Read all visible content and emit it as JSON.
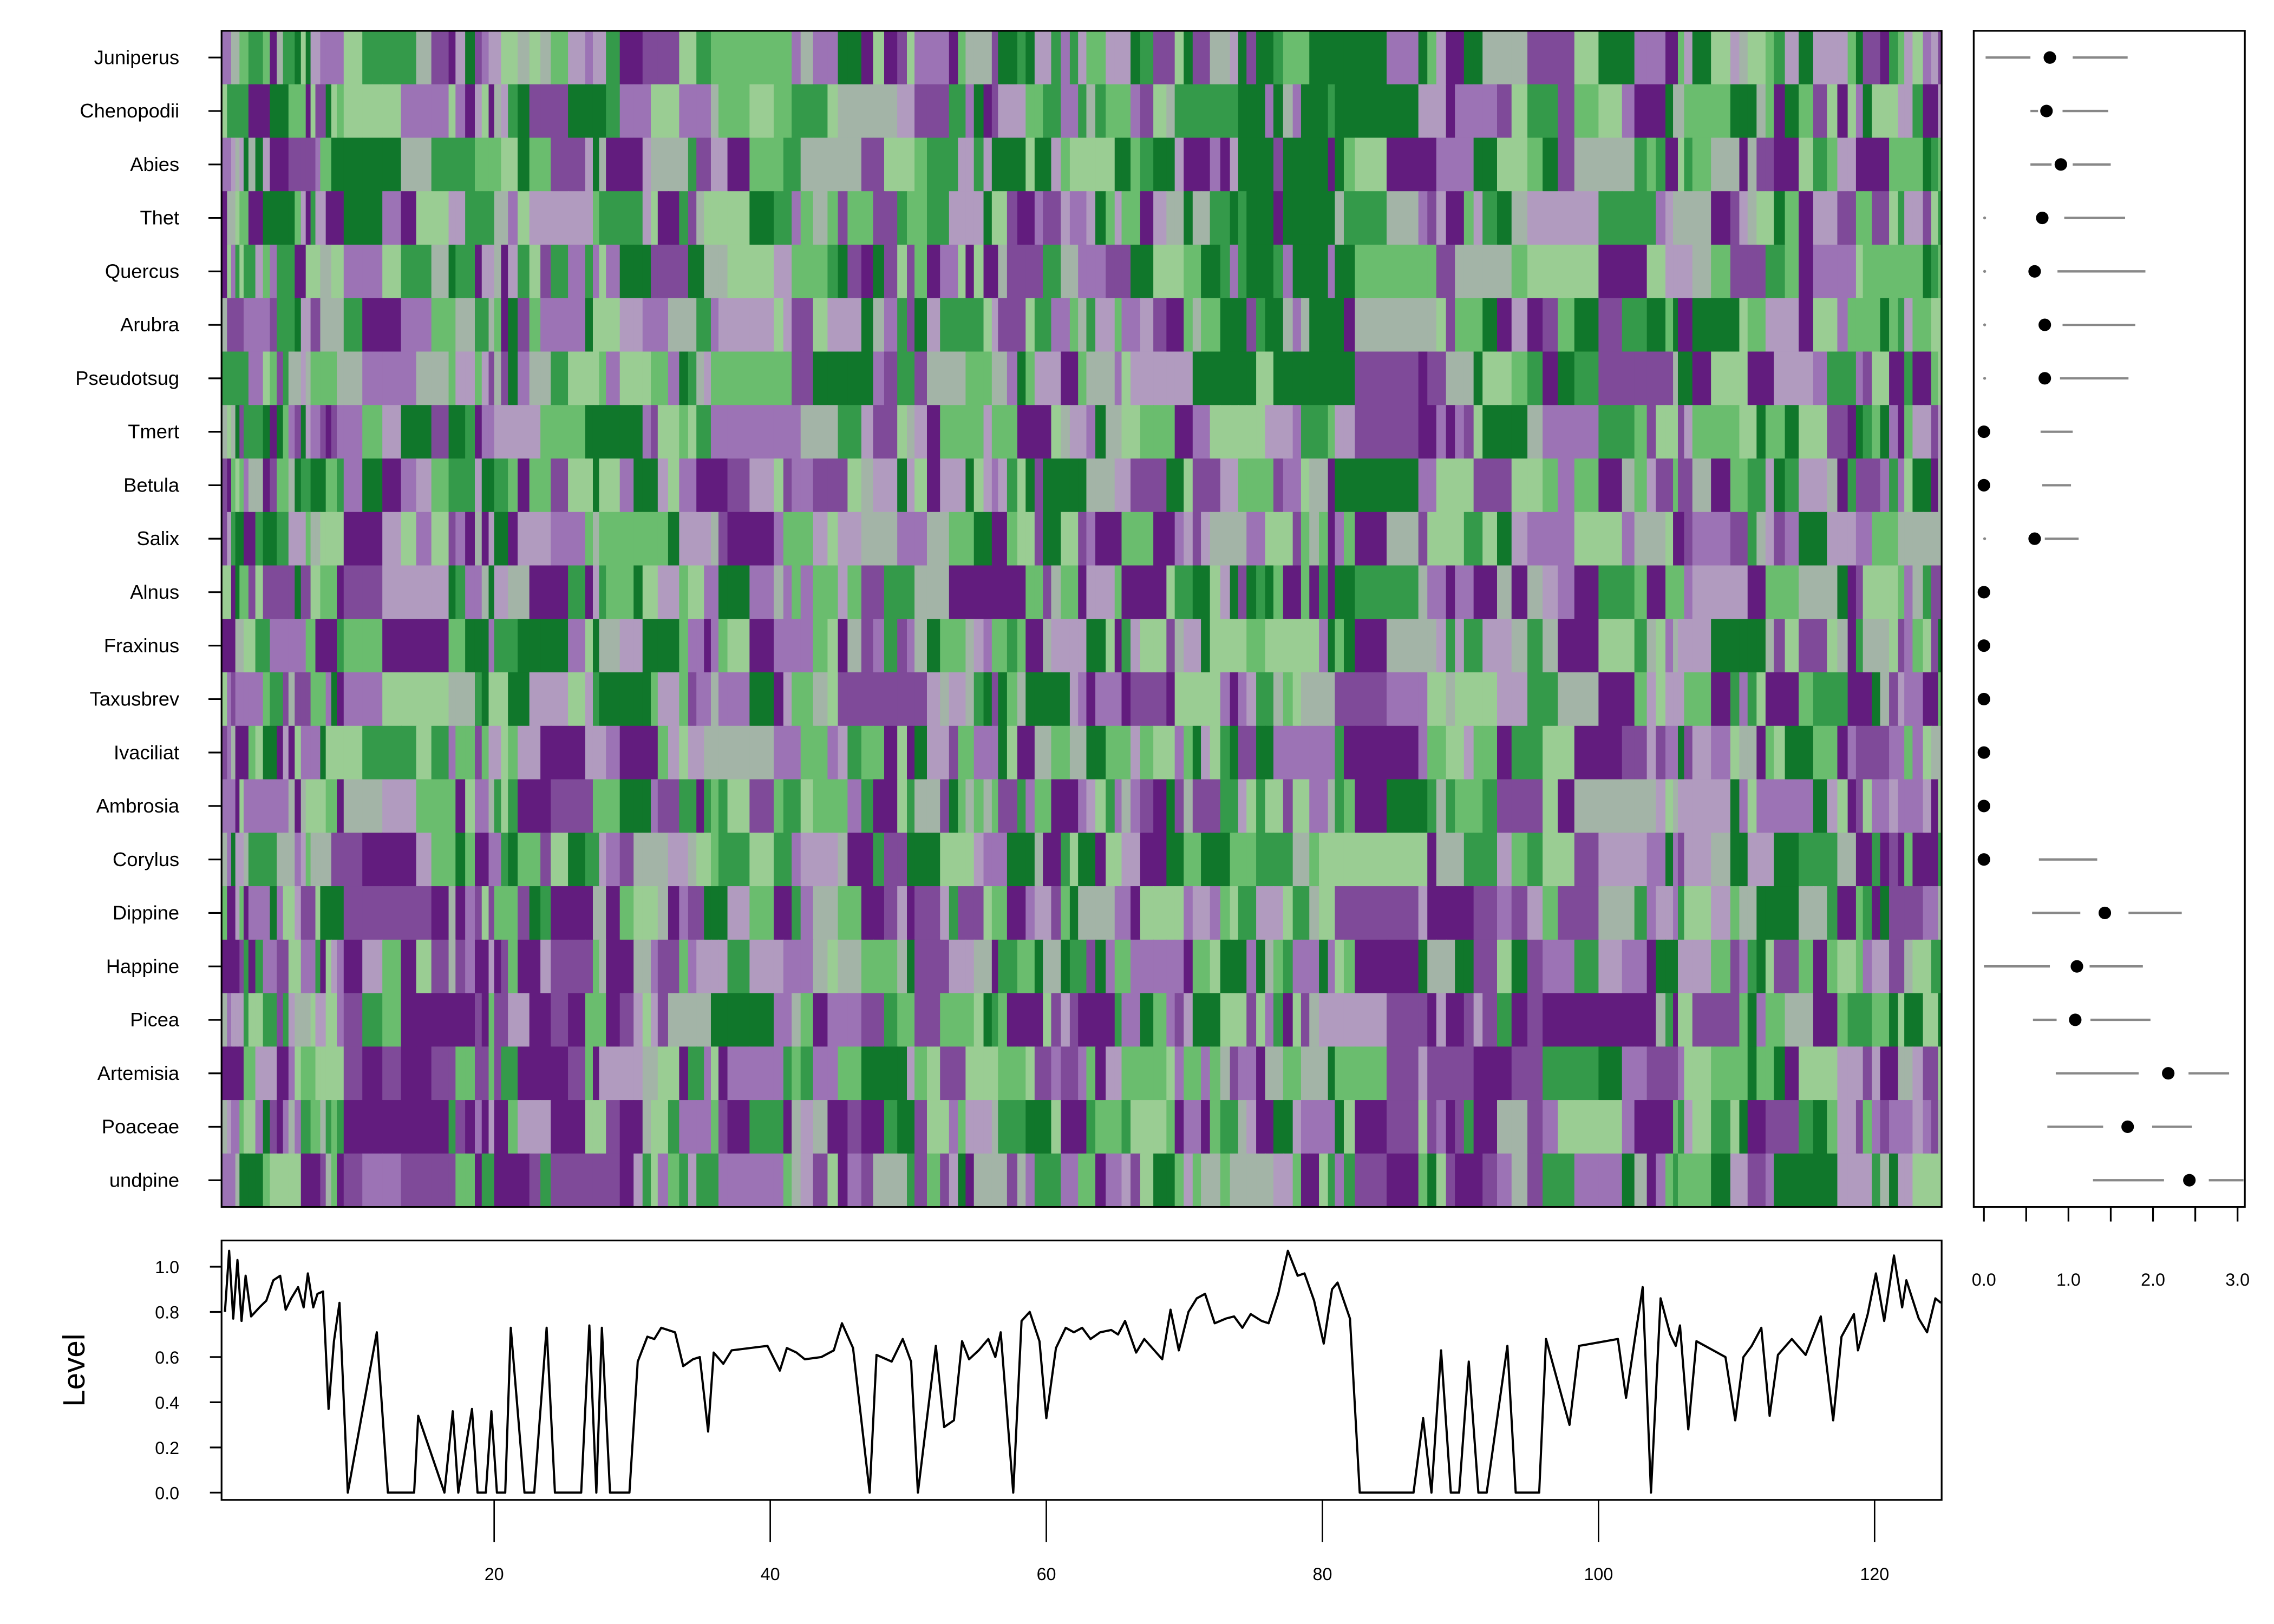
{
  "chart_data": [
    {
      "type": "heatmap",
      "title": "",
      "rows": [
        "Juniperus",
        "Chenopodii",
        "Abies",
        "Thet",
        "Quercus",
        "Arubra",
        "Pseudotsug",
        "Tmert",
        "Betula",
        "Salix",
        "Alnus",
        "Fraxinus",
        "Taxusbrev",
        "Ivaciliat",
        "Ambrosia",
        "Corylus",
        "Dippine",
        "Happine",
        "Picea",
        "Artemisia",
        "Poaceae",
        "undpine"
      ],
      "palette": [
        "#621c7e",
        "#7f4a99",
        "#9c73b5",
        "#b19bbf",
        "#a3b4a7",
        "#9acd93",
        "#6abd6e",
        "#349a4a",
        "#10772b"
      ],
      "levels": 9
    },
    {
      "type": "scatter",
      "subtype": "dot-interval",
      "xlim": [
        0,
        3.1
      ],
      "x_ticks": [
        0,
        0.5,
        1,
        1.5,
        2,
        2.5,
        3
      ],
      "x_tick_labels": [
        "0.0",
        "1.0",
        "2.0",
        "3.0"
      ],
      "x_tick_label_values": [
        0,
        1,
        2,
        3
      ],
      "points": [
        {
          "row": "Juniperus",
          "estimate": 0.78,
          "segments": [
            [
              0.02,
              0.55
            ],
            [
              1.05,
              1.7
            ]
          ]
        },
        {
          "row": "Chenopodii",
          "estimate": 0.74,
          "segments": [
            [
              0.55,
              0.64
            ],
            [
              0.93,
              1.47
            ]
          ]
        },
        {
          "row": "Abies",
          "estimate": 0.91,
          "segments": [
            [
              0.55,
              0.8
            ],
            [
              1.05,
              1.5
            ]
          ]
        },
        {
          "row": "Thet",
          "estimate": 0.69,
          "segments": [
            [
              0,
              0.02
            ],
            [
              0.95,
              1.67
            ]
          ]
        },
        {
          "row": "Quercus",
          "estimate": 0.6,
          "segments": [
            [
              0,
              0.02
            ],
            [
              0.87,
              1.91
            ]
          ]
        },
        {
          "row": "Arubra",
          "estimate": 0.72,
          "segments": [
            [
              0,
              0.02
            ],
            [
              0.93,
              1.79
            ]
          ]
        },
        {
          "row": "Pseudotsug",
          "estimate": 0.72,
          "segments": [
            [
              0,
              0.02
            ],
            [
              0.9,
              1.71
            ]
          ]
        },
        {
          "row": "Tmert",
          "estimate": 0,
          "segments": [
            [
              0.67,
              1.05
            ]
          ]
        },
        {
          "row": "Betula",
          "estimate": 0,
          "segments": [
            [
              0.69,
              1.03
            ]
          ]
        },
        {
          "row": "Salix",
          "estimate": 0.6,
          "segments": [
            [
              0,
              0.02
            ],
            [
              0.72,
              1.12
            ]
          ]
        },
        {
          "row": "Alnus",
          "estimate": 0,
          "segments": []
        },
        {
          "row": "Fraxinus",
          "estimate": 0,
          "segments": []
        },
        {
          "row": "Taxusbrev",
          "estimate": 0,
          "segments": []
        },
        {
          "row": "Ivaciliat",
          "estimate": 0,
          "segments": []
        },
        {
          "row": "Ambrosia",
          "estimate": 0,
          "segments": []
        },
        {
          "row": "Corylus",
          "estimate": 0,
          "segments": [
            [
              0.65,
              1.34
            ]
          ]
        },
        {
          "row": "Dippine",
          "estimate": 1.43,
          "segments": [
            [
              0.57,
              1.14
            ],
            [
              1.71,
              2.34
            ]
          ]
        },
        {
          "row": "Happine",
          "estimate": 1.1,
          "segments": [
            [
              0,
              0.78
            ],
            [
              1.25,
              1.88
            ]
          ]
        },
        {
          "row": "Picea",
          "estimate": 1.08,
          "segments": [
            [
              0.58,
              0.86
            ],
            [
              1.26,
              1.97
            ]
          ]
        },
        {
          "row": "Artemisia",
          "estimate": 2.18,
          "segments": [
            [
              0.85,
              1.83
            ],
            [
              2.42,
              2.9
            ]
          ]
        },
        {
          "row": "Poaceae",
          "estimate": 1.7,
          "segments": [
            [
              0.75,
              1.41
            ],
            [
              1.99,
              2.46
            ]
          ]
        },
        {
          "row": "undpine",
          "estimate": 2.43,
          "segments": [
            [
              1.29,
              2.13
            ],
            [
              2.66,
              3.07
            ]
          ]
        }
      ]
    },
    {
      "type": "line",
      "ylabel": "Level",
      "xlabel": "",
      "xlim": [
        0.3,
        125
      ],
      "ylim": [
        -0.03,
        1.12
      ],
      "x_ticks": [
        20,
        40,
        60,
        80,
        100,
        120
      ],
      "y_ticks": [
        0,
        0.2,
        0.4,
        0.6,
        0.8,
        1.0
      ],
      "x_tick_labels": [
        "20",
        "40",
        "60",
        "80",
        "100",
        "120"
      ],
      "y_tick_labels": [
        "0.0",
        "0.2",
        "0.4",
        "0.6",
        "0.8",
        "1.0"
      ],
      "x": [
        0.5,
        0.8,
        1.1,
        1.4,
        1.7,
        2.0,
        2.4,
        3.0,
        3.5,
        4.0,
        4.5,
        4.9,
        5.3,
        5.8,
        6.2,
        6.5,
        6.9,
        7.2,
        7.6,
        8.0,
        8.4,
        8.8,
        9.4,
        11.5,
        12.3,
        14.2,
        14.5,
        16.4,
        17.0,
        17.4,
        18.4,
        18.8,
        19.4,
        19.8,
        20.2,
        20.8,
        21.2,
        22.2,
        22.9,
        23.8,
        24.4,
        26.3,
        26.9,
        27.4,
        27.8,
        28.4,
        29.8,
        30.4,
        31.1,
        31.6,
        32.1,
        33.1,
        33.7,
        34.4,
        34.9,
        35.5,
        35.9,
        36.6,
        37.2,
        39.8,
        40.7,
        41.2,
        41.9,
        42.5,
        43.7,
        44.6,
        45.2,
        46.0,
        47.2,
        47.7,
        48.8,
        49.6,
        50.2,
        50.7,
        52.0,
        52.6,
        53.3,
        53.9,
        54.4,
        55.1,
        55.8,
        56.3,
        56.7,
        57.6,
        58.2,
        58.8,
        59.5,
        60.0,
        60.7,
        61.4,
        62.0,
        62.6,
        63.2,
        63.9,
        64.7,
        65.2,
        65.7,
        66.5,
        67.1,
        68.4,
        69.0,
        69.6,
        70.3,
        70.9,
        71.5,
        72.2,
        73.0,
        73.6,
        74.2,
        74.8,
        75.6,
        76.1,
        76.8,
        77.5,
        78.2,
        78.7,
        79.4,
        80.1,
        80.7,
        81.1,
        82.0,
        82.7,
        86.6,
        87.3,
        87.9,
        88.6,
        89.3,
        89.9,
        90.6,
        91.3,
        91.9,
        93.4,
        94.0,
        95.7,
        96.2,
        97.9,
        98.6,
        101.4,
        102.0,
        103.2,
        103.8,
        104.5,
        105.2,
        105.6,
        105.9,
        106.5,
        107.1,
        109.2,
        109.9,
        110.5,
        111.1,
        111.8,
        112.4,
        113.0,
        114.0,
        115.0,
        116.1,
        117.0,
        117.6,
        118.5,
        118.8,
        119.5,
        120.1,
        120.7,
        121.4,
        122.0,
        122.3,
        123.2,
        123.8,
        124.4,
        124.8
      ],
      "y": [
        0.8,
        1.07,
        0.77,
        1.03,
        0.76,
        0.96,
        0.78,
        0.82,
        0.85,
        0.94,
        0.96,
        0.81,
        0.86,
        0.91,
        0.82,
        0.97,
        0.82,
        0.88,
        0.89,
        0.37,
        0.67,
        0.84,
        0,
        0.71,
        0,
        0,
        0.34,
        0,
        0.36,
        0,
        0.37,
        0,
        0,
        0.36,
        0,
        0,
        0.73,
        0,
        0,
        0.73,
        0,
        0,
        0.74,
        0,
        0.73,
        0,
        0,
        0.58,
        0.69,
        0.68,
        0.73,
        0.71,
        0.56,
        0.59,
        0.6,
        0.27,
        0.62,
        0.57,
        0.63,
        0.65,
        0.54,
        0.64,
        0.62,
        0.59,
        0.6,
        0.63,
        0.75,
        0.64,
        0,
        0.61,
        0.58,
        0.68,
        0.58,
        0,
        0.65,
        0.29,
        0.32,
        0.67,
        0.59,
        0.63,
        0.68,
        0.6,
        0.71,
        0,
        0.76,
        0.8,
        0.67,
        0.33,
        0.64,
        0.73,
        0.71,
        0.73,
        0.68,
        0.71,
        0.72,
        0.7,
        0.76,
        0.62,
        0.68,
        0.59,
        0.81,
        0.63,
        0.8,
        0.86,
        0.88,
        0.75,
        0.77,
        0.78,
        0.73,
        0.79,
        0.76,
        0.75,
        0.88,
        1.07,
        0.96,
        0.97,
        0.85,
        0.66,
        0.9,
        0.93,
        0.77,
        0,
        0,
        0.33,
        0,
        0.63,
        0,
        0,
        0.58,
        0,
        0,
        0.65,
        0,
        0,
        0.68,
        0.3,
        0.65,
        0.68,
        0.42,
        0.91,
        0,
        0.86,
        0.7,
        0.65,
        0.74,
        0.28,
        0.67,
        0.6,
        0.32,
        0.6,
        0.65,
        0.73,
        0.34,
        0.61,
        0.68,
        0.61,
        0.78,
        0.32,
        0.69,
        0.79,
        0.63,
        0.79,
        0.97,
        0.76,
        1.05,
        0.82,
        0.94,
        0.77,
        0.71,
        0.86,
        0.84
      ]
    }
  ]
}
